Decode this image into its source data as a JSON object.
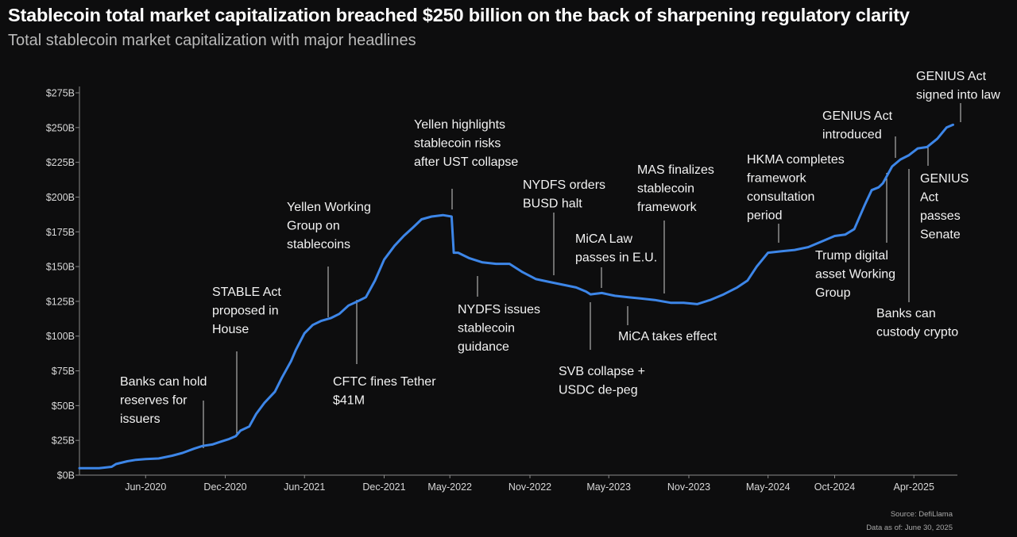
{
  "header": {
    "title": "Stablecoin total market capitalization breached $250 billion on the back of sharpening regulatory clarity",
    "subtitle": "Total stablecoin market capitalization with major headlines"
  },
  "footer": {
    "source": "Source: DefiLlama",
    "data_as_of": "Data as of: June 30, 2025"
  },
  "chart_data": {
    "type": "line",
    "title": "Stablecoin total market capitalization breached $250 billion on the back of sharpening regulatory clarity",
    "subtitle": "Total stablecoin market capitalization with major headlines",
    "xlabel": "",
    "ylabel": "",
    "ylim": [
      0,
      275
    ],
    "xlim": [
      "2020-01-01",
      "2025-07-10"
    ],
    "y_unit": "billion USD",
    "line_color": "#3d86e8",
    "grid": false,
    "y_ticks": [
      {
        "value": 0,
        "label": "$0B"
      },
      {
        "value": 25,
        "label": "$25B"
      },
      {
        "value": 50,
        "label": "$50B"
      },
      {
        "value": 75,
        "label": "$75B"
      },
      {
        "value": 100,
        "label": "$100B"
      },
      {
        "value": 125,
        "label": "$125B"
      },
      {
        "value": 150,
        "label": "$150B"
      },
      {
        "value": 175,
        "label": "$175B"
      },
      {
        "value": 200,
        "label": "$200B"
      },
      {
        "value": 225,
        "label": "$225B"
      },
      {
        "value": 250,
        "label": "$250B"
      },
      {
        "value": 275,
        "label": "$275B"
      }
    ],
    "x_ticks": [
      {
        "value": "2020-06-01",
        "label": "Jun-2020"
      },
      {
        "value": "2020-12-01",
        "label": "Dec-2020"
      },
      {
        "value": "2021-06-01",
        "label": "Jun-2021"
      },
      {
        "value": "2021-12-01",
        "label": "Dec-2021"
      },
      {
        "value": "2022-05-01",
        "label": "May-2022"
      },
      {
        "value": "2022-11-01",
        "label": "Nov-2022"
      },
      {
        "value": "2023-05-01",
        "label": "May-2023"
      },
      {
        "value": "2023-11-01",
        "label": "Nov-2023"
      },
      {
        "value": "2024-05-01",
        "label": "May-2024"
      },
      {
        "value": "2024-10-01",
        "label": "Oct-2024"
      },
      {
        "value": "2025-04-01",
        "label": "Apr-2025"
      }
    ],
    "series": [
      {
        "x": [
          "2020-01-01",
          "2020-02-15",
          "2020-03-15",
          "2020-03-25",
          "2020-04-20",
          "2020-05-10",
          "2020-06-01",
          "2020-07-01",
          "2020-08-01",
          "2020-08-25",
          "2020-09-20",
          "2020-10-10",
          "2020-11-01",
          "2020-11-20",
          "2020-12-10",
          "2020-12-25",
          "2021-01-05",
          "2021-01-25",
          "2021-02-10",
          "2021-03-01",
          "2021-03-25",
          "2021-04-10",
          "2021-05-01",
          "2021-05-12",
          "2021-06-01",
          "2021-06-20",
          "2021-07-10",
          "2021-08-01",
          "2021-08-20",
          "2021-09-10",
          "2021-10-01",
          "2021-10-20",
          "2021-11-10",
          "2021-12-01",
          "2021-12-25",
          "2022-01-15",
          "2022-02-05",
          "2022-02-25",
          "2022-03-20",
          "2022-04-15",
          "2022-05-05",
          "2022-05-10",
          "2022-05-20",
          "2022-06-15",
          "2022-07-15",
          "2022-08-15",
          "2022-09-15",
          "2022-10-15",
          "2022-11-15",
          "2022-12-15",
          "2023-01-15",
          "2023-02-15",
          "2023-03-10",
          "2023-03-20",
          "2023-04-15",
          "2023-05-15",
          "2023-06-15",
          "2023-07-15",
          "2023-08-15",
          "2023-09-20",
          "2023-10-20",
          "2023-11-20",
          "2023-12-20",
          "2024-01-20",
          "2024-02-20",
          "2024-03-15",
          "2024-04-05",
          "2024-05-01",
          "2024-06-01",
          "2024-07-01",
          "2024-08-01",
          "2024-09-01",
          "2024-10-01",
          "2024-10-25",
          "2024-11-15",
          "2024-12-10",
          "2024-12-25",
          "2025-01-10",
          "2025-01-20",
          "2025-02-10",
          "2025-03-01",
          "2025-03-20",
          "2025-04-10",
          "2025-05-01",
          "2025-05-25",
          "2025-06-15",
          "2025-06-30"
        ],
        "y": [
          5,
          5,
          6,
          8,
          10,
          11,
          11.5,
          12,
          14,
          16,
          19,
          21,
          22,
          24,
          26,
          28,
          32,
          35,
          44,
          52,
          60,
          70,
          82,
          90,
          102,
          108,
          111,
          113,
          116,
          122,
          125,
          128,
          140,
          155,
          165,
          172,
          178,
          184,
          186,
          187,
          186,
          160,
          160,
          156,
          153,
          152,
          152,
          146,
          141,
          139,
          137,
          135,
          132,
          130,
          131,
          129,
          128,
          127,
          126,
          124,
          124,
          123,
          126,
          130,
          135,
          140,
          150,
          160,
          161,
          162,
          164,
          168,
          172,
          173,
          177,
          195,
          205,
          207,
          210,
          222,
          227,
          230,
          235,
          236,
          242,
          250,
          252
        ]
      }
    ],
    "annotations": [
      {
        "date": "2020-10-15",
        "value": 20,
        "text": [
          "Banks can hold",
          "reserves for",
          "issuers"
        ]
      },
      {
        "date": "2020-12-15",
        "value": 28,
        "text": [
          "STABLE Act",
          "proposed in",
          "House"
        ]
      },
      {
        "date": "2021-07-10",
        "value": 112,
        "text": [
          "Yellen Working",
          "Group on",
          "stablecoins"
        ]
      },
      {
        "date": "2021-09-20",
        "value": 125,
        "text": [
          "CFTC fines Tether",
          "$41M"
        ]
      },
      {
        "date": "2022-05-10",
        "value": 186,
        "text": [
          "Yellen highlights",
          "stablecoin risks",
          "after UST collapse"
        ]
      },
      {
        "date": "2022-06-10",
        "value": 152,
        "text": [
          "NYDFS issues",
          "stablecoin",
          "guidance"
        ]
      },
      {
        "date": "2022-12-10",
        "value": 140,
        "text": [
          "NYDFS orders",
          "BUSD halt"
        ]
      },
      {
        "date": "2023-03-10",
        "value": 132,
        "text": [
          "SVB collapse +",
          "USDC de-peg"
        ]
      },
      {
        "date": "2023-04-10",
        "value": 135,
        "text": [
          "MiCA Law",
          "passes in E.U."
        ]
      },
      {
        "date": "2023-06-30",
        "value": 128,
        "text": [
          "MiCA takes effect"
        ]
      },
      {
        "date": "2023-10-10",
        "value": 124,
        "text": [
          "MAS finalizes",
          "stablecoin",
          "framework"
        ]
      },
      {
        "date": "2024-07-20",
        "value": 161,
        "text": [
          "HKMA completes",
          "framework",
          "consultation",
          "period"
        ]
      },
      {
        "date": "2025-01-10",
        "value": 207,
        "text": [
          "Trump digital",
          "asset Working",
          "Group"
        ]
      },
      {
        "date": "2025-02-05",
        "value": 225,
        "text": [
          "GENIUS Act",
          "introduced"
        ]
      },
      {
        "date": "2025-03-15",
        "value": 230,
        "text": [
          "Banks can",
          "custody crypto"
        ]
      },
      {
        "date": "2025-05-20",
        "value": 238,
        "text": [
          "GENIUS",
          "Act",
          "passes",
          "Senate"
        ]
      },
      {
        "date": "2025-06-30",
        "value": 252,
        "text": [
          "GENIUS Act",
          "signed into law"
        ]
      }
    ]
  }
}
